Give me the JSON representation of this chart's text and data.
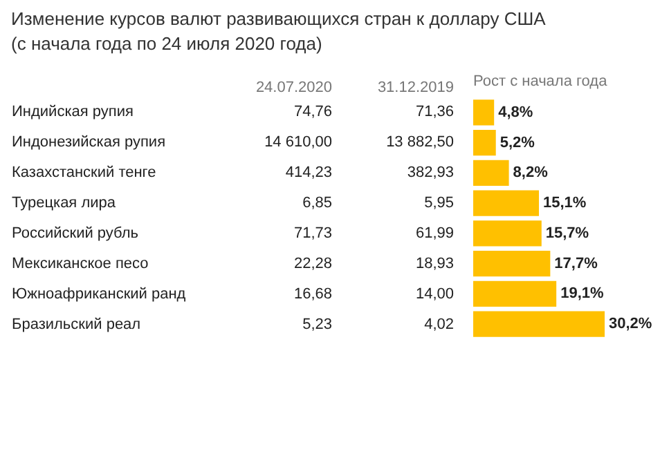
{
  "chart_data": [
    {
      "type": "other",
      "title": "Изменение курсов валют развивающихся стран к доллару США (с начала года по 24 июля 2020 года)",
      "categories": [
        "24.07.2020",
        "31.12.2019"
      ],
      "y_categories": [
        "Индийская рупия",
        "Индонезийская рупия",
        "Казахстанский тенге",
        "Турецкая лира",
        "Российский рубль",
        "Мексиканское песо",
        "Южноафриканский ранд",
        "Бразильский реал"
      ],
      "cell_labels": [
        [
          "74,76",
          "71,36"
        ],
        [
          "14 610,00",
          "13 882,50"
        ],
        [
          "414,23",
          "382,93"
        ],
        [
          "6,85",
          "5,95"
        ],
        [
          "71,73",
          "61,99"
        ],
        [
          "22,28",
          "18,93"
        ],
        [
          "16,68",
          "14,00"
        ],
        [
          "5,23",
          "4,02"
        ]
      ]
    },
    {
      "type": "bar",
      "orientation": "horizontal",
      "title": "Рост с начала года",
      "categories": [
        null,
        null,
        null,
        null,
        null,
        null,
        null,
        null
      ],
      "values": [
        4.8,
        5.2,
        8.2,
        15.1,
        15.7,
        17.7,
        19.1,
        30.2
      ],
      "color": "#ffc000",
      "value_labels": [
        "4,8%",
        "5,2%",
        "8,2%",
        "15,1%",
        "15,7%",
        "17,7%",
        "19,1%",
        "30,2%"
      ]
    }
  ]
}
